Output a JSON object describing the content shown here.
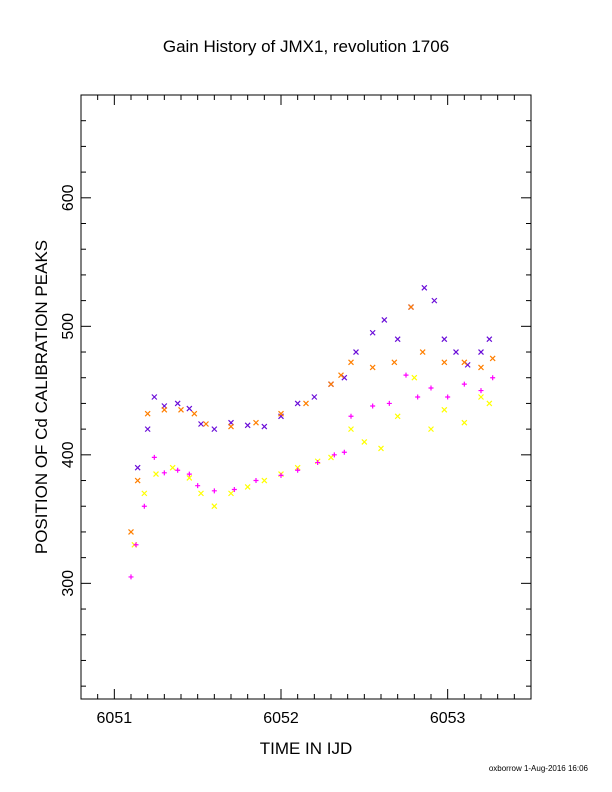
{
  "chart_data": {
    "type": "scatter",
    "title": "Gain History of JMX1, revolution 1706",
    "xlabel": "TIME IN IJD",
    "ylabel": "POSITION OF Cd CALIBRATION PEAKS",
    "xlim": [
      6050.8,
      6053.5
    ],
    "ylim": [
      210,
      680
    ],
    "xticks": [
      6051,
      6052,
      6053
    ],
    "xtick_labels": [
      "6051",
      "6052",
      "6053"
    ],
    "yticks": [
      300,
      400,
      500,
      600
    ],
    "ytick_labels": [
      "300",
      "400",
      "500",
      "600"
    ],
    "grid": false,
    "legend": "none",
    "series": [
      {
        "color": "#6a0dd8",
        "marker": "x",
        "points": [
          [
            6051.14,
            390
          ],
          [
            6051.2,
            420
          ],
          [
            6051.24,
            445
          ],
          [
            6051.3,
            438
          ],
          [
            6051.38,
            440
          ],
          [
            6051.45,
            436
          ],
          [
            6051.52,
            424
          ],
          [
            6051.6,
            420
          ],
          [
            6051.7,
            425
          ],
          [
            6051.8,
            423
          ],
          [
            6051.9,
            422
          ],
          [
            6052.0,
            430
          ],
          [
            6052.1,
            440
          ],
          [
            6052.2,
            445
          ],
          [
            6052.3,
            455
          ],
          [
            6052.38,
            460
          ],
          [
            6052.45,
            480
          ],
          [
            6052.55,
            495
          ],
          [
            6052.62,
            505
          ],
          [
            6052.7,
            490
          ],
          [
            6052.78,
            515
          ],
          [
            6052.86,
            530
          ],
          [
            6052.92,
            520
          ],
          [
            6052.98,
            490
          ],
          [
            6053.05,
            480
          ],
          [
            6053.12,
            470
          ],
          [
            6053.2,
            480
          ],
          [
            6053.25,
            490
          ]
        ]
      },
      {
        "color": "#ff7f00",
        "marker": "x",
        "points": [
          [
            6051.1,
            340
          ],
          [
            6051.14,
            380
          ],
          [
            6051.2,
            432
          ],
          [
            6051.3,
            435
          ],
          [
            6051.4,
            435
          ],
          [
            6051.48,
            432
          ],
          [
            6051.55,
            424
          ],
          [
            6051.7,
            422
          ],
          [
            6051.85,
            425
          ],
          [
            6052.0,
            432
          ],
          [
            6052.15,
            440
          ],
          [
            6052.3,
            455
          ],
          [
            6052.36,
            462
          ],
          [
            6052.42,
            472
          ],
          [
            6052.55,
            468
          ],
          [
            6052.68,
            472
          ],
          [
            6052.78,
            515
          ],
          [
            6052.85,
            480
          ],
          [
            6052.98,
            472
          ],
          [
            6053.1,
            472
          ],
          [
            6053.2,
            468
          ],
          [
            6053.27,
            475
          ]
        ]
      },
      {
        "color": "#ffff00",
        "marker": "x",
        "points": [
          [
            6051.12,
            330
          ],
          [
            6051.18,
            370
          ],
          [
            6051.25,
            385
          ],
          [
            6051.35,
            390
          ],
          [
            6051.45,
            382
          ],
          [
            6051.52,
            370
          ],
          [
            6051.6,
            360
          ],
          [
            6051.7,
            370
          ],
          [
            6051.8,
            375
          ],
          [
            6051.9,
            380
          ],
          [
            6052.0,
            385
          ],
          [
            6052.1,
            390
          ],
          [
            6052.22,
            395
          ],
          [
            6052.3,
            398
          ],
          [
            6052.42,
            420
          ],
          [
            6052.5,
            410
          ],
          [
            6052.6,
            405
          ],
          [
            6052.7,
            430
          ],
          [
            6052.8,
            460
          ],
          [
            6052.9,
            420
          ],
          [
            6052.98,
            435
          ],
          [
            6053.1,
            425
          ],
          [
            6053.2,
            445
          ],
          [
            6053.25,
            440
          ]
        ]
      },
      {
        "color": "#ff00ff",
        "marker": "+",
        "points": [
          [
            6051.1,
            305
          ],
          [
            6051.13,
            330
          ],
          [
            6051.18,
            360
          ],
          [
            6051.24,
            398
          ],
          [
            6051.3,
            386
          ],
          [
            6051.38,
            388
          ],
          [
            6051.45,
            385
          ],
          [
            6051.5,
            376
          ],
          [
            6051.6,
            372
          ],
          [
            6051.72,
            373
          ],
          [
            6051.85,
            380
          ],
          [
            6052.0,
            384
          ],
          [
            6052.1,
            388
          ],
          [
            6052.22,
            394
          ],
          [
            6052.32,
            400
          ],
          [
            6052.38,
            402
          ],
          [
            6052.42,
            430
          ],
          [
            6052.55,
            438
          ],
          [
            6052.65,
            440
          ],
          [
            6052.75,
            462
          ],
          [
            6052.82,
            445
          ],
          [
            6052.9,
            452
          ],
          [
            6053.0,
            445
          ],
          [
            6053.1,
            455
          ],
          [
            6053.2,
            450
          ],
          [
            6053.27,
            460
          ]
        ]
      }
    ]
  },
  "footer": {
    "credit": "oxborrow  1-Aug-2016 16:06"
  }
}
